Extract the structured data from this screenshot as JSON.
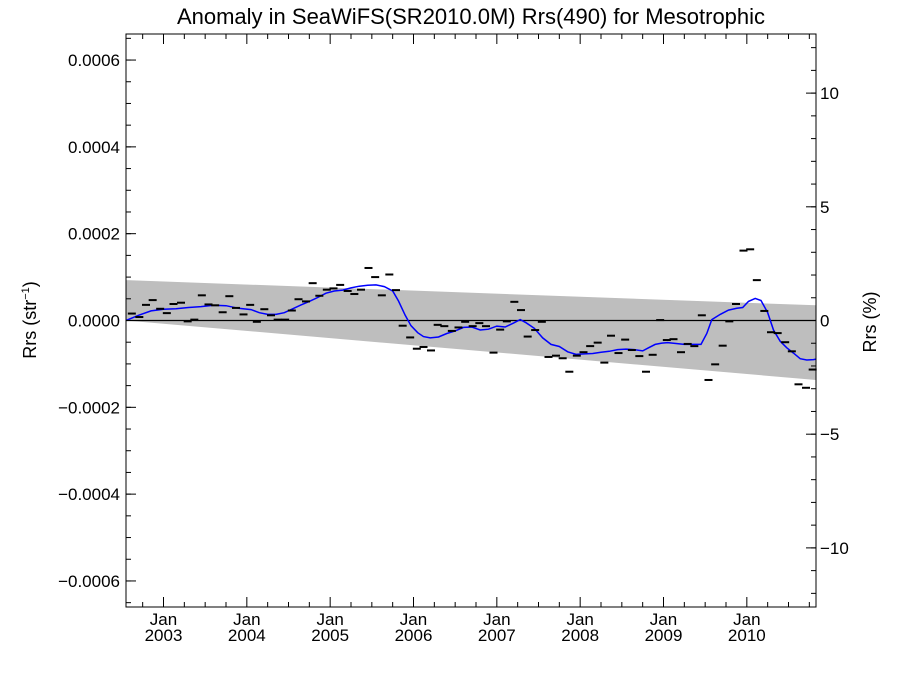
{
  "chart_data": {
    "type": "line",
    "title": "Anomaly in SeaWiFS(SR2010.0M) Rrs(490) for Mesotrophic",
    "ylabel_main": "Rrs (str",
    "ylabel_sup": "−1",
    "ylabel_close": ")",
    "y2label": "Rrs (%)",
    "xlim": [
      2002.55,
      2010.83
    ],
    "ylim": [
      -0.00066,
      0.00066
    ],
    "y2lim": [
      -12.6,
      12.6
    ],
    "yticks": [
      {
        "value": 0.0006,
        "label": "0.0006"
      },
      {
        "value": 0.0004,
        "label": "0.0004"
      },
      {
        "value": 0.0002,
        "label": "0.0002"
      },
      {
        "value": 0.0,
        "label": "0.0000"
      },
      {
        "value": -0.0002,
        "label": "−0.0002"
      },
      {
        "value": -0.0004,
        "label": "−0.0004"
      },
      {
        "value": -0.0006,
        "label": "−0.0006"
      }
    ],
    "y2ticks": [
      {
        "value": 10,
        "label": "10"
      },
      {
        "value": 5,
        "label": "5"
      },
      {
        "value": 0,
        "label": "0"
      },
      {
        "value": -5,
        "label": "−5"
      },
      {
        "value": -10,
        "label": "−10"
      }
    ],
    "xticks": [
      {
        "value": 2003.0,
        "label1": "Jan",
        "label2": "2003"
      },
      {
        "value": 2004.0,
        "label1": "Jan",
        "label2": "2004"
      },
      {
        "value": 2005.0,
        "label1": "Jan",
        "label2": "2005"
      },
      {
        "value": 2006.0,
        "label1": "Jan",
        "label2": "2006"
      },
      {
        "value": 2007.0,
        "label1": "Jan",
        "label2": "2007"
      },
      {
        "value": 2008.0,
        "label1": "Jan",
        "label2": "2008"
      },
      {
        "value": 2009.0,
        "label1": "Jan",
        "label2": "2009"
      },
      {
        "value": 2010.0,
        "label1": "Jan",
        "label2": "2010"
      }
    ],
    "band": {
      "color": "#bebebe",
      "upper": [
        [
          2002.55,
          9.3e-05
        ],
        [
          2010.83,
          3.5e-05
        ]
      ],
      "lower": [
        [
          2002.55,
          0.0
        ],
        [
          2010.83,
          -0.000137
        ]
      ]
    },
    "zero_line": 0.0,
    "series": [
      {
        "kind": "markers",
        "color": "#000000",
        "points": [
          [
            2002.62,
            1.6e-05
          ],
          [
            2002.71,
            8e-06
          ],
          [
            2002.79,
            3.6e-05
          ],
          [
            2002.87,
            4.7e-05
          ],
          [
            2002.96,
            2.7e-05
          ],
          [
            2003.04,
            1.7e-05
          ],
          [
            2003.12,
            3.8e-05
          ],
          [
            2003.21,
            4.1e-05
          ],
          [
            2003.29,
            -2e-06
          ],
          [
            2003.37,
            2e-06
          ],
          [
            2003.46,
            5.8e-05
          ],
          [
            2003.54,
            3.7e-05
          ],
          [
            2003.62,
            3.5e-05
          ],
          [
            2003.71,
            1.9e-05
          ],
          [
            2003.79,
            5.6e-05
          ],
          [
            2003.87,
            2.9e-05
          ],
          [
            2003.96,
            1.4e-05
          ],
          [
            2004.04,
            3.6e-05
          ],
          [
            2004.12,
            -3e-06
          ],
          [
            2004.21,
            2.6e-05
          ],
          [
            2004.29,
            1.2e-05
          ],
          [
            2004.37,
            2e-06
          ],
          [
            2004.46,
            2e-06
          ],
          [
            2004.54,
            2.3e-05
          ],
          [
            2004.62,
            4.9e-05
          ],
          [
            2004.71,
            4.4e-05
          ],
          [
            2004.79,
            8.6e-05
          ],
          [
            2004.87,
            5.7e-05
          ],
          [
            2004.96,
            7.1e-05
          ],
          [
            2005.04,
            7.4e-05
          ],
          [
            2005.12,
            8.2e-05
          ],
          [
            2005.21,
            6.8e-05
          ],
          [
            2005.29,
            6.1e-05
          ],
          [
            2005.37,
            7.1e-05
          ],
          [
            2005.46,
            0.000121
          ],
          [
            2005.54,
            0.0001
          ],
          [
            2005.62,
            5.8e-05
          ],
          [
            2005.71,
            0.000106
          ],
          [
            2005.79,
            7e-05
          ],
          [
            2005.87,
            -1.2e-05
          ],
          [
            2005.96,
            -3.9e-05
          ],
          [
            2006.04,
            -6.5e-05
          ],
          [
            2006.12,
            -6.1e-05
          ],
          [
            2006.21,
            -6.9e-05
          ],
          [
            2006.29,
            -1e-05
          ],
          [
            2006.37,
            -1.3e-05
          ],
          [
            2006.46,
            -2.4e-05
          ],
          [
            2006.54,
            -1.6e-05
          ],
          [
            2006.62,
            -3e-06
          ],
          [
            2006.71,
            -1.3e-05
          ],
          [
            2006.79,
            -6e-06
          ],
          [
            2006.87,
            -1.3e-05
          ],
          [
            2006.96,
            -7.4e-05
          ],
          [
            2007.04,
            -2.1e-05
          ],
          [
            2007.12,
            -2e-06
          ],
          [
            2007.21,
            4.3e-05
          ],
          [
            2007.29,
            2.4e-05
          ],
          [
            2007.37,
            -3.7e-05
          ],
          [
            2007.46,
            -2.2e-05
          ],
          [
            2007.54,
            -3e-06
          ],
          [
            2007.62,
            -8.4e-05
          ],
          [
            2007.71,
            -8.1e-05
          ],
          [
            2007.79,
            -8.7e-05
          ],
          [
            2007.87,
            -0.000118
          ],
          [
            2007.96,
            -8.1e-05
          ],
          [
            2008.04,
            -7.3e-05
          ],
          [
            2008.12,
            -5.9e-05
          ],
          [
            2008.21,
            -5.1e-05
          ],
          [
            2008.29,
            -9.7e-05
          ],
          [
            2008.37,
            -3.5e-05
          ],
          [
            2008.46,
            -7.5e-05
          ],
          [
            2008.54,
            -4.4e-05
          ],
          [
            2008.62,
            -6.8e-05
          ],
          [
            2008.71,
            -8.2e-05
          ],
          [
            2008.79,
            -0.000118
          ],
          [
            2008.87,
            -7.9e-05
          ],
          [
            2008.96,
            1e-06
          ],
          [
            2009.04,
            -4.5e-05
          ],
          [
            2009.12,
            -4.3e-05
          ],
          [
            2009.21,
            -7.3e-05
          ],
          [
            2009.29,
            -5.4e-05
          ],
          [
            2009.37,
            -5.9e-05
          ],
          [
            2009.46,
            1.2e-05
          ],
          [
            2009.54,
            -0.000137
          ],
          [
            2009.62,
            -0.000101
          ],
          [
            2009.71,
            -5.8e-05
          ],
          [
            2009.79,
            -2e-06
          ],
          [
            2009.87,
            3.8e-05
          ],
          [
            2009.96,
            0.000161
          ],
          [
            2010.04,
            0.000164
          ],
          [
            2010.12,
            9.3e-05
          ],
          [
            2010.21,
            2.2e-05
          ],
          [
            2010.29,
            -2.7e-05
          ],
          [
            2010.37,
            -2.9e-05
          ],
          [
            2010.46,
            -5e-05
          ],
          [
            2010.54,
            -7.1e-05
          ],
          [
            2010.62,
            -0.000147
          ],
          [
            2010.71,
            -0.000155
          ],
          [
            2010.79,
            -0.000113
          ]
        ]
      },
      {
        "kind": "line",
        "color": "#0000ff",
        "points": [
          [
            2002.55,
            0.0
          ],
          [
            2002.7,
            1.2e-05
          ],
          [
            2002.85,
            2.2e-05
          ],
          [
            2003.0,
            2.6e-05
          ],
          [
            2003.15,
            2.7e-05
          ],
          [
            2003.3,
            3e-05
          ],
          [
            2003.45,
            3.2e-05
          ],
          [
            2003.6,
            3.5e-05
          ],
          [
            2003.75,
            3.4e-05
          ],
          [
            2003.9,
            2.8e-05
          ],
          [
            2004.05,
            2.5e-05
          ],
          [
            2004.15,
            1.8e-05
          ],
          [
            2004.25,
            1.4e-05
          ],
          [
            2004.35,
            1.4e-05
          ],
          [
            2004.45,
            1.8e-05
          ],
          [
            2004.55,
            2.7e-05
          ],
          [
            2004.65,
            3.6e-05
          ],
          [
            2004.75,
            4.4e-05
          ],
          [
            2004.85,
            5.3e-05
          ],
          [
            2004.95,
            6.3e-05
          ],
          [
            2005.05,
            6.8e-05
          ],
          [
            2005.15,
            7e-05
          ],
          [
            2005.25,
            7.5e-05
          ],
          [
            2005.35,
            7.9e-05
          ],
          [
            2005.45,
            8.1e-05
          ],
          [
            2005.55,
            8.2e-05
          ],
          [
            2005.65,
            7.8e-05
          ],
          [
            2005.75,
            6.8e-05
          ],
          [
            2005.82,
            4.5e-05
          ],
          [
            2005.9,
            1.2e-05
          ],
          [
            2005.97,
            -1.2e-05
          ],
          [
            2006.05,
            -2.8e-05
          ],
          [
            2006.12,
            -3.7e-05
          ],
          [
            2006.2,
            -4e-05
          ],
          [
            2006.3,
            -3.8e-05
          ],
          [
            2006.4,
            -3e-05
          ],
          [
            2006.5,
            -2.4e-05
          ],
          [
            2006.6,
            -1.6e-05
          ],
          [
            2006.7,
            -1.5e-05
          ],
          [
            2006.8,
            -2.2e-05
          ],
          [
            2006.9,
            -2e-05
          ],
          [
            2007.0,
            -1.3e-05
          ],
          [
            2007.1,
            -1.5e-05
          ],
          [
            2007.2,
            -6e-06
          ],
          [
            2007.28,
            2e-06
          ],
          [
            2007.35,
            -5e-06
          ],
          [
            2007.45,
            -1.8e-05
          ],
          [
            2007.55,
            -4e-05
          ],
          [
            2007.65,
            -5.5e-05
          ],
          [
            2007.75,
            -6e-05
          ],
          [
            2007.85,
            -7.2e-05
          ],
          [
            2007.95,
            -7.8e-05
          ],
          [
            2008.05,
            -7.7e-05
          ],
          [
            2008.15,
            -7.6e-05
          ],
          [
            2008.25,
            -7.3e-05
          ],
          [
            2008.35,
            -7.1e-05
          ],
          [
            2008.45,
            -6.7e-05
          ],
          [
            2008.55,
            -6.6e-05
          ],
          [
            2008.65,
            -6.7e-05
          ],
          [
            2008.75,
            -7e-05
          ],
          [
            2008.82,
            -6.3e-05
          ],
          [
            2008.9,
            -5.5e-05
          ],
          [
            2008.98,
            -5.2e-05
          ],
          [
            2009.05,
            -5.1e-05
          ],
          [
            2009.15,
            -5.3e-05
          ],
          [
            2009.25,
            -5.5e-05
          ],
          [
            2009.35,
            -5.5e-05
          ],
          [
            2009.45,
            -5.5e-05
          ],
          [
            2009.52,
            -3e-05
          ],
          [
            2009.58,
            2e-06
          ],
          [
            2009.68,
            1.4e-05
          ],
          [
            2009.78,
            2.4e-05
          ],
          [
            2009.88,
            2.8e-05
          ],
          [
            2009.95,
            3e-05
          ],
          [
            2010.02,
            4.4e-05
          ],
          [
            2010.1,
            5.1e-05
          ],
          [
            2010.17,
            4.6e-05
          ],
          [
            2010.25,
            1.8e-05
          ],
          [
            2010.32,
            -2.2e-05
          ],
          [
            2010.4,
            -4.8e-05
          ],
          [
            2010.48,
            -6.3e-05
          ],
          [
            2010.56,
            -7.5e-05
          ],
          [
            2010.64,
            -8.8e-05
          ],
          [
            2010.72,
            -9.1e-05
          ],
          [
            2010.8,
            -9e-05
          ],
          [
            2010.83,
            -8.9e-05
          ]
        ]
      }
    ],
    "grid": false
  }
}
